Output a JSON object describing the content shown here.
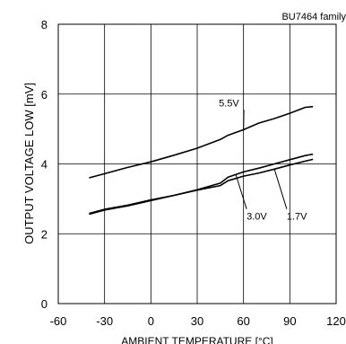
{
  "chart_data": {
    "type": "line",
    "title": "",
    "subtitle": "BU7464 family",
    "xlabel": "AMBIENT TEMPERATURE [°C]",
    "ylabel": "OUTPUT VOLTAGE LOW [mV]",
    "xlim": [
      -60,
      120
    ],
    "ylim": [
      0,
      8
    ],
    "xticks": [
      -60,
      -30,
      0,
      30,
      60,
      90,
      120
    ],
    "yticks": [
      0,
      2,
      4,
      6,
      8
    ],
    "grid": true,
    "legend": "none",
    "series": [
      {
        "name": "5.5V",
        "x": [
          -40,
          -30,
          -15,
          0,
          15,
          30,
          45,
          50,
          60,
          70,
          80,
          90,
          100,
          105
        ],
        "y": [
          3.6,
          3.72,
          3.9,
          4.06,
          4.25,
          4.45,
          4.7,
          4.82,
          4.98,
          5.17,
          5.3,
          5.45,
          5.62,
          5.64
        ]
      },
      {
        "name": "3.0V",
        "x": [
          -40,
          -30,
          -15,
          0,
          15,
          30,
          45,
          50,
          60,
          70,
          80,
          90,
          100,
          105
        ],
        "y": [
          2.58,
          2.7,
          2.82,
          2.97,
          3.1,
          3.26,
          3.45,
          3.62,
          3.77,
          3.88,
          4.0,
          4.12,
          4.24,
          4.28
        ]
      },
      {
        "name": "1.7V",
        "x": [
          -40,
          -30,
          -15,
          0,
          15,
          30,
          45,
          50,
          60,
          70,
          80,
          90,
          100,
          105
        ],
        "y": [
          2.56,
          2.68,
          2.8,
          2.95,
          3.1,
          3.25,
          3.38,
          3.52,
          3.65,
          3.74,
          3.85,
          3.97,
          4.08,
          4.13
        ]
      }
    ],
    "annotations": [
      {
        "text": "5.5V",
        "series": 0,
        "at_x": 60,
        "label_x": 44,
        "label_y": 5.65
      },
      {
        "text": "3.0V",
        "series": 1,
        "at_x": 55,
        "label_x": 62,
        "label_y": 2.4
      },
      {
        "text": "1.7V",
        "series": 2,
        "at_x": 80,
        "label_x": 88,
        "label_y": 2.4
      }
    ]
  }
}
